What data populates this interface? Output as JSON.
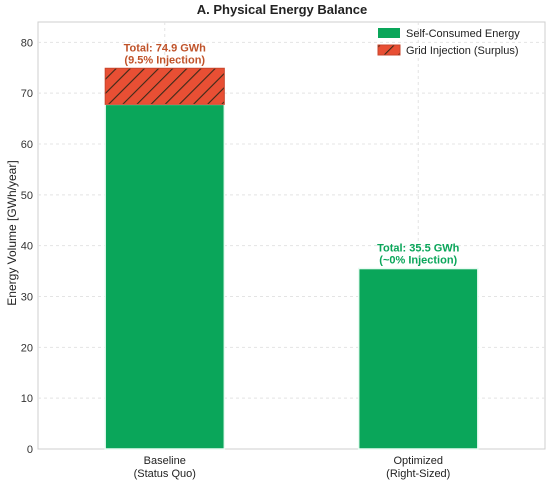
{
  "chart_data": {
    "type": "bar",
    "stacked": true,
    "title": "A. Physical Energy Balance",
    "ylabel": "Energy Volume [GWh/year]",
    "xlabel": "",
    "categories": [
      "Baseline\n(Status Quo)",
      "Optimized\n(Right-Sized)"
    ],
    "ylim": [
      0,
      84
    ],
    "yticks": [
      0,
      10,
      20,
      30,
      40,
      50,
      60,
      70,
      80
    ],
    "grid": true,
    "legend_position": "top-right",
    "series": [
      {
        "name": "Self-Consumed Energy",
        "values": [
          67.8,
          35.5
        ],
        "color": "#0aa65a",
        "hatch": false
      },
      {
        "name": "Grid Injection (Surplus)",
        "values": [
          7.1,
          0.0
        ],
        "color": "#e84f34",
        "hatch": true
      }
    ],
    "annotations": [
      {
        "line1": "Total: 74.9 GWh",
        "line2": "(9.5% Injection)",
        "y": 74.9,
        "category_index": 0,
        "color": "#c0532a"
      },
      {
        "line1": "Total: 35.5 GWh",
        "line2": "(~0% Injection)",
        "y": 35.5,
        "category_index": 1,
        "color": "#0aa65a"
      }
    ]
  }
}
